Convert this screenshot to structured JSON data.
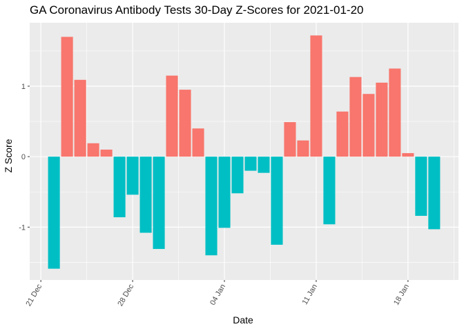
{
  "chart_data": {
    "type": "bar",
    "title": "GA Coronavirus Antibody Tests 30-Day Z-Scores for 2021-01-20",
    "xlabel": "Date",
    "ylabel": "Z Score",
    "x_ticks": [
      "21 Dec",
      "28 Dec",
      "04 Jan",
      "11 Jan",
      "18 Jan"
    ],
    "y_ticks": [
      "-1",
      "0",
      "1"
    ],
    "ylim": [
      -1.75,
      1.9
    ],
    "grid": true,
    "legend": "none",
    "colors": {
      "positive": "#F8766D",
      "negative": "#00BFC4",
      "panel": "#EBEBEB"
    },
    "dates": [
      "2020-12-22",
      "2020-12-23",
      "2020-12-24",
      "2020-12-25",
      "2020-12-26",
      "2020-12-27",
      "2020-12-28",
      "2020-12-29",
      "2020-12-30",
      "2020-12-31",
      "2021-01-01",
      "2021-01-02",
      "2021-01-03",
      "2021-01-04",
      "2021-01-05",
      "2021-01-06",
      "2021-01-07",
      "2021-01-08",
      "2021-01-09",
      "2021-01-10",
      "2021-01-11",
      "2021-01-12",
      "2021-01-13",
      "2021-01-14",
      "2021-01-15",
      "2021-01-16",
      "2021-01-17",
      "2021-01-18",
      "2021-01-19",
      "2021-01-20"
    ],
    "values": [
      -1.59,
      1.7,
      1.09,
      0.19,
      0.1,
      -0.86,
      -0.54,
      -1.08,
      -1.31,
      1.15,
      0.95,
      0.4,
      -1.4,
      -1.01,
      -0.52,
      -0.2,
      -0.23,
      -1.25,
      0.49,
      0.23,
      1.72,
      -0.96,
      0.64,
      1.13,
      0.89,
      1.05,
      1.25,
      0.05,
      -0.84,
      -1.03
    ]
  }
}
